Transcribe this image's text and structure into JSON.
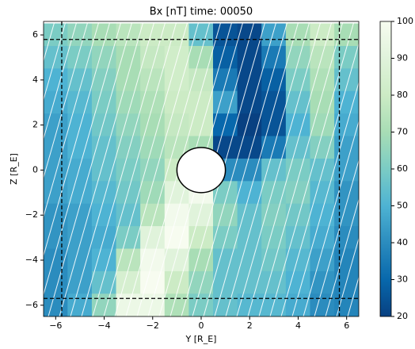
{
  "chart_data": {
    "type": "heatmap",
    "title": "Bx [nT] time: 00050",
    "xlabel": "Y [R_E]",
    "ylabel": "Z [R_E]",
    "x": [
      -6,
      -5,
      -4,
      -3,
      -2,
      -1,
      0,
      1,
      2,
      3,
      4,
      5,
      6
    ],
    "y": [
      6,
      5,
      4,
      3,
      2,
      1,
      0,
      -1,
      -2,
      -3,
      -4,
      -5,
      -6
    ],
    "z": [
      [
        60,
        65,
        70,
        75,
        80,
        80,
        55,
        25,
        22,
        45,
        70,
        80,
        70
      ],
      [
        55,
        60,
        65,
        70,
        78,
        82,
        70,
        28,
        22,
        35,
        65,
        75,
        60
      ],
      [
        50,
        55,
        62,
        70,
        75,
        82,
        78,
        35,
        22,
        28,
        60,
        72,
        55
      ],
      [
        48,
        52,
        60,
        68,
        72,
        80,
        80,
        45,
        22,
        25,
        55,
        70,
        50
      ],
      [
        45,
        50,
        58,
        65,
        70,
        78,
        80,
        30,
        20,
        25,
        50,
        68,
        48
      ],
      [
        45,
        50,
        55,
        62,
        68,
        75,
        70,
        22,
        22,
        35,
        55,
        62,
        45
      ],
      [
        45,
        48,
        55,
        60,
        65,
        80,
        100,
        40,
        40,
        55,
        60,
        55,
        45
      ],
      [
        45,
        48,
        52,
        58,
        68,
        90,
        98,
        60,
        50,
        60,
        62,
        52,
        42
      ],
      [
        42,
        45,
        50,
        55,
        75,
        98,
        90,
        65,
        55,
        62,
        58,
        50,
        42
      ],
      [
        42,
        45,
        48,
        60,
        90,
        100,
        80,
        60,
        55,
        60,
        55,
        48,
        40
      ],
      [
        40,
        45,
        50,
        75,
        98,
        90,
        70,
        55,
        55,
        58,
        52,
        45,
        38
      ],
      [
        40,
        45,
        55,
        85,
        100,
        80,
        65,
        55,
        55,
        55,
        50,
        42,
        38
      ],
      [
        40,
        48,
        65,
        95,
        95,
        72,
        60,
        55,
        52,
        52,
        48,
        40,
        38
      ]
    ],
    "xlim": [
      -6.5,
      6.5
    ],
    "ylim": [
      -6.5,
      6.6
    ],
    "xticks": [
      {
        "value": -6,
        "label": "−6"
      },
      {
        "value": -4,
        "label": "−4"
      },
      {
        "value": -2,
        "label": "−2"
      },
      0,
      2,
      4,
      6
    ],
    "yticks": [
      {
        "value": -6,
        "label": "−6"
      },
      {
        "value": -4,
        "label": "−4"
      },
      {
        "value": -2,
        "label": "−2"
      },
      0,
      2,
      4,
      6
    ],
    "clim": [
      20,
      100
    ],
    "cticks": [
      20,
      30,
      40,
      50,
      60,
      70,
      80,
      90,
      100
    ],
    "colormap": [
      "#084081",
      "#0868ac",
      "#2b8cbe",
      "#4eb3d3",
      "#7bccc4",
      "#a8ddb5",
      "#ccebc5",
      "#e0f3db",
      "#f7fcf0"
    ],
    "box": {
      "x": [
        -5.75,
        5.7
      ],
      "y": [
        -5.7,
        5.8
      ]
    },
    "body": {
      "x": 0,
      "y": 0,
      "r": 1
    }
  }
}
